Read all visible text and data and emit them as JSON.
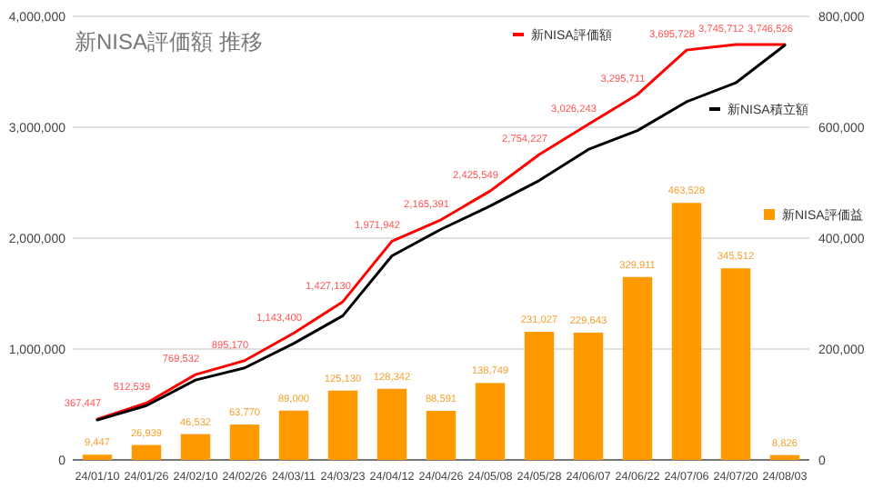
{
  "chart_data": {
    "type": "line",
    "title": "新NISA評価額 推移",
    "categories": [
      "24/01/10",
      "24/01/26",
      "24/02/10",
      "24/02/26",
      "24/03/11",
      "24/03/23",
      "24/04/12",
      "24/04/26",
      "24/05/08",
      "24/05/28",
      "24/06/07",
      "24/06/22",
      "24/07/06",
      "24/07/20",
      "24/08/03"
    ],
    "series": [
      {
        "name": "新NISA評価額",
        "color": "#ff0000",
        "values": [
          367447,
          512539,
          769532,
          895170,
          1143400,
          1427130,
          1971942,
          2165391,
          2425549,
          2754227,
          3026243,
          3295711,
          3695728,
          3745712,
          3746526
        ],
        "value_labels": [
          "367,447",
          "512,539",
          "769,532",
          "895,170",
          "1,143,400",
          "1,427,130",
          "1,971,942",
          "2,165,391",
          "2,425,549",
          "2,754,227",
          "3,026,243",
          "3,295,711",
          "3,695,728",
          "3,745,712",
          "3,746,526"
        ]
      },
      {
        "name": "新NISA積立額",
        "color": "#000000",
        "values": [
          360000,
          490000,
          720000,
          830000,
          1050000,
          1300000,
          1840000,
          2080000,
          2290000,
          2520000,
          2800000,
          2970000,
          3230000,
          3400000,
          3740000
        ]
      },
      {
        "name": "新NISA評価益",
        "type": "bar",
        "axis": "y2",
        "color": "#ff9900",
        "values": [
          9447,
          26939,
          46532,
          63770,
          89000,
          125130,
          128342,
          88591,
          138749,
          231027,
          229643,
          329911,
          463528,
          345512,
          8826
        ],
        "value_labels": [
          "9,447",
          "26,939",
          "46,532",
          "63,770",
          "89,000",
          "125,130",
          "128,342",
          "88,591",
          "138,749",
          "231,027",
          "229,643",
          "329,911",
          "463,528",
          "345,512",
          "8,826"
        ]
      }
    ],
    "ylim": [
      0,
      4000000
    ],
    "yticks": [
      {
        "value": 0,
        "label": "0"
      },
      {
        "value": 1000000,
        "label": "1,000,000"
      },
      {
        "value": 2000000,
        "label": "2,000,000"
      },
      {
        "value": 3000000,
        "label": "3,000,000"
      },
      {
        "value": 4000000,
        "label": "4,000,000"
      }
    ],
    "y2lim": [
      0,
      800000
    ],
    "y2ticks": [
      {
        "value": 0,
        "label": "0"
      },
      {
        "value": 200000,
        "label": "200,000"
      },
      {
        "value": 400000,
        "label": "400,000"
      },
      {
        "value": 600000,
        "label": "600,000"
      },
      {
        "value": 800000,
        "label": "800,000"
      }
    ],
    "grid": "y",
    "legend": "right"
  }
}
